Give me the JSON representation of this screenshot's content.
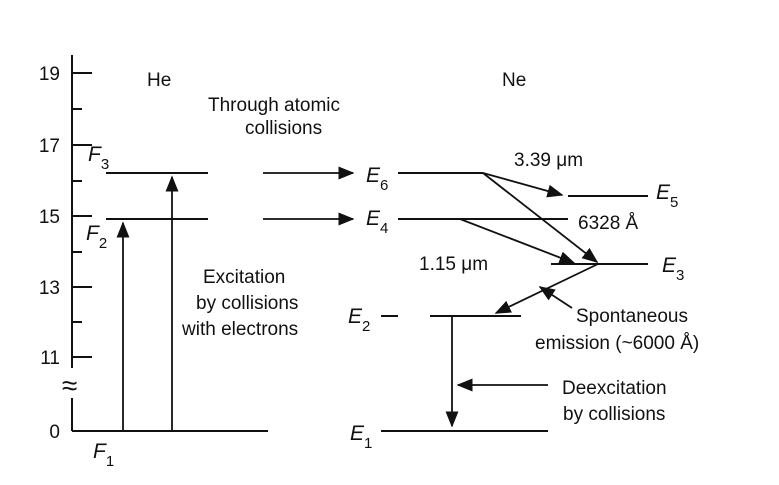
{
  "axis": {
    "ticks": [
      "19",
      "17",
      "15",
      "13",
      "11",
      "0"
    ],
    "break_symbol": "≈"
  },
  "columns": {
    "he": "He",
    "ne": "Ne"
  },
  "he_levels": {
    "f3": {
      "letter": "F",
      "sub": "3"
    },
    "f2": {
      "letter": "F",
      "sub": "2"
    },
    "f1": {
      "letter": "F",
      "sub": "1"
    }
  },
  "ne_levels": {
    "e6": {
      "letter": "E",
      "sub": "6"
    },
    "e5": {
      "letter": "E",
      "sub": "5"
    },
    "e4": {
      "letter": "E",
      "sub": "4"
    },
    "e3": {
      "letter": "E",
      "sub": "3"
    },
    "e2": {
      "letter": "E",
      "sub": "2"
    },
    "e1": {
      "letter": "E",
      "sub": "1"
    }
  },
  "annotations": {
    "transfer_line1": "Through atomic",
    "transfer_line2": "collisions",
    "excitation_line1": "Excitation",
    "excitation_line2": "by collisions",
    "excitation_line3": "with electrons",
    "wavelength_339": "3.39 μm",
    "wavelength_6328": "6328 Å",
    "wavelength_115": "1.15 μm",
    "spontaneous_line1": "Spontaneous",
    "spontaneous_line2": "emission (~6000 Å)",
    "deexcitation_line1": "Deexcitation",
    "deexcitation_line2": "by collisions"
  },
  "colors": {
    "ink": "#111111",
    "background": "#ffffff"
  }
}
